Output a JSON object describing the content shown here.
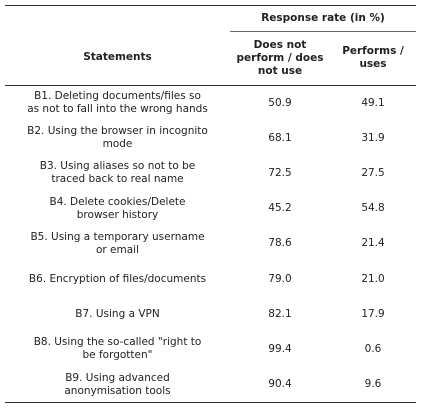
{
  "table": {
    "group_header": "Response rate (in %)",
    "columns": [
      "Statements",
      "Does not perform / does not use",
      "Performs / uses"
    ],
    "rows": [
      [
        "B1. Deleting documents/files so as not to fall into the wrong hands",
        "50.9",
        "49.1"
      ],
      [
        "B2. Using the browser in incognito mode",
        "68.1",
        "31.9"
      ],
      [
        "B3. Using aliases so not to be traced back to real name",
        "72.5",
        "27.5"
      ],
      [
        "B4. Delete cookies/Delete browser history",
        "45.2",
        "54.8"
      ],
      [
        "B5. Using a temporary username or email",
        "78.6",
        "21.4"
      ],
      [
        "B6. Encryption of files/documents",
        "79.0",
        "21.0"
      ],
      [
        "B7. Using a VPN",
        "82.1",
        "17.9"
      ],
      [
        "B8. Using the so-called \"right to be forgotten\"",
        "99.4",
        "0.6"
      ],
      [
        "B9. Using advanced anonymisation tools",
        "90.4",
        "9.6"
      ]
    ]
  }
}
